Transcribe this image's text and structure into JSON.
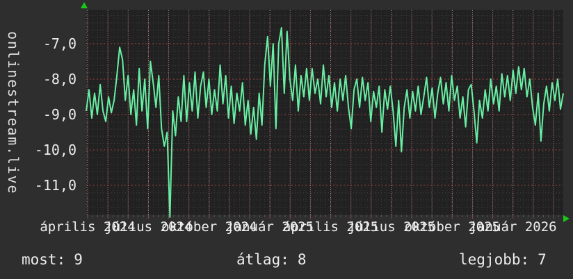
{
  "brand": {
    "text": "onlinestream.live"
  },
  "colors": {
    "background": "#2e2e2e",
    "plot_background": "#212121",
    "line": "#68efa3",
    "grid_major": "#9c4444",
    "grid_minor": "#424242",
    "grid_month": "#8a8a8a",
    "axis_arrow": "#1cc71c",
    "text": "#ededed"
  },
  "stats": {
    "items": [
      {
        "label": "most:",
        "value": "9"
      },
      {
        "label": "átlag:",
        "value": "8"
      },
      {
        "label": "legjobb:",
        "value": "7"
      }
    ]
  },
  "chart_data": {
    "type": "line",
    "title": "",
    "xlabel": "",
    "ylabel": "",
    "grid": "on",
    "legend_position": "none",
    "y_axis": {
      "tick_labels": [
        "-7,0",
        "-8,0",
        "-9,0",
        "-10,0",
        "-11,0"
      ],
      "tick_values": [
        -7.0,
        -8.0,
        -9.0,
        -10.0,
        -11.0
      ],
      "ylim": [
        -11.84,
        -6.04
      ]
    },
    "x_axis": {
      "tick_labels": [
        "április 2024",
        "július 2024",
        "október 2024",
        "január 2025",
        "április 2025",
        "július 2025",
        "október 2025",
        "január 2026"
      ]
    },
    "series": [
      {
        "color": "#68efa3",
        "values": [
          -8.9,
          -8.3,
          -9.1,
          -8.4,
          -9.0,
          -8.15,
          -8.9,
          -9.2,
          -8.5,
          -8.95,
          -8.6,
          -7.9,
          -7.1,
          -7.45,
          -8.6,
          -7.9,
          -9.0,
          -8.3,
          -9.3,
          -7.7,
          -8.9,
          -8.0,
          -9.4,
          -7.5,
          -8.1,
          -8.8,
          -7.9,
          -9.4,
          -9.9,
          -9.5,
          -11.9,
          -8.9,
          -9.6,
          -8.5,
          -9.2,
          -7.9,
          -9.2,
          -8.1,
          -8.9,
          -7.8,
          -9.1,
          -8.2,
          -7.8,
          -8.8,
          -8.0,
          -9.0,
          -8.3,
          -8.9,
          -7.6,
          -8.7,
          -7.9,
          -9.1,
          -8.2,
          -9.25,
          -8.4,
          -8.9,
          -8.1,
          -9.3,
          -8.6,
          -9.55,
          -8.8,
          -9.7,
          -8.4,
          -9.3,
          -7.6,
          -6.8,
          -8.2,
          -7.0,
          -9.4,
          -7.0,
          -6.55,
          -8.4,
          -6.65,
          -8.0,
          -8.6,
          -7.6,
          -8.9,
          -7.9,
          -8.5,
          -7.7,
          -8.6,
          -7.7,
          -8.4,
          -8.0,
          -8.7,
          -7.6,
          -8.5,
          -7.9,
          -8.8,
          -8.1,
          -8.9,
          -8.0,
          -8.6,
          -7.9,
          -8.8,
          -9.4,
          -8.3,
          -8.0,
          -8.8,
          -7.95,
          -8.6,
          -8.1,
          -9.2,
          -8.35,
          -8.8,
          -8.2,
          -9.5,
          -8.3,
          -8.85,
          -8.2,
          -8.9,
          -9.9,
          -8.6,
          -10.05,
          -8.8,
          -8.3,
          -9.1,
          -8.35,
          -8.9,
          -8.2,
          -9.0,
          -8.5,
          -7.95,
          -8.8,
          -8.25,
          -9.1,
          -8.4,
          -7.95,
          -8.7,
          -8.1,
          -8.9,
          -7.9,
          -8.6,
          -8.2,
          -9.1,
          -8.5,
          -9.35,
          -8.3,
          -8.15,
          -8.9,
          -9.8,
          -8.6,
          -9.1,
          -8.3,
          -8.9,
          -8.0,
          -8.7,
          -8.2,
          -8.9,
          -7.85,
          -8.5,
          -7.9,
          -8.6,
          -7.75,
          -8.4,
          -7.65,
          -8.3,
          -7.7,
          -8.5,
          -8.0,
          -8.8,
          -9.3,
          -8.4,
          -9.75,
          -8.7,
          -8.2,
          -8.9,
          -8.1,
          -8.6,
          -8.0,
          -8.85,
          -8.4
        ]
      }
    ]
  }
}
